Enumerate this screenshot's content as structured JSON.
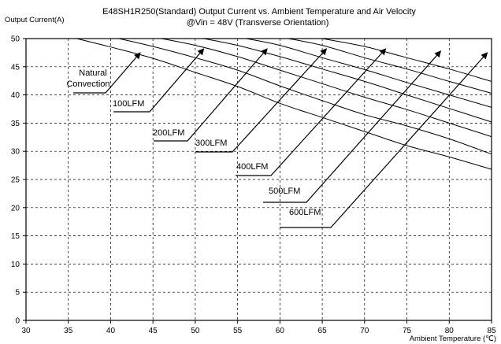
{
  "chart_data": {
    "type": "line",
    "title": "E48SH1R250(Standard)  Output Current vs. Ambient Temperature and Air Velocity",
    "subtitle": "@Vin = 48V (Transverse Orientation)",
    "ylabel": "Output Current(A)",
    "xlabel": "Ambient Temperature (℃)",
    "xlim": [
      30,
      85
    ],
    "ylim": [
      0,
      50
    ],
    "x_ticks": [
      "30",
      "35",
      "40",
      "45",
      "50",
      "55",
      "60",
      "65",
      "70",
      "75",
      "80",
      "85"
    ],
    "y_ticks": [
      "0",
      "5",
      "10",
      "15",
      "20",
      "25",
      "30",
      "35",
      "40",
      "45",
      "50"
    ],
    "grid": true,
    "series": [
      {
        "name": "Natural Convection",
        "label_lines": [
          "Natural",
          "Convection"
        ],
        "x": [
          30,
          36,
          40,
          45,
          50,
          55,
          60,
          65,
          70,
          75,
          80,
          85
        ],
        "y": [
          50,
          50,
          48.5,
          46.5,
          44.0,
          41.5,
          38.5,
          36.0,
          33.5,
          31.0,
          29.0,
          26.8
        ],
        "arrow_to": [
          43.5,
          47.5
        ]
      },
      {
        "name": "100LFM",
        "label_lines": [
          "100LFM"
        ],
        "x": [
          30,
          41,
          45,
          50,
          55,
          60,
          65,
          70,
          75,
          80,
          85
        ],
        "y": [
          50,
          50,
          48.6,
          46.6,
          44.4,
          41.6,
          39.0,
          36.5,
          34.5,
          32.2,
          29.5
        ],
        "arrow_to": [
          51.0,
          48.2
        ]
      },
      {
        "name": "200LFM",
        "label_lines": [
          "200LFM"
        ],
        "x": [
          30,
          46,
          50,
          55,
          60,
          65,
          70,
          75,
          80,
          85
        ],
        "y": [
          50,
          50,
          48.8,
          46.8,
          44.4,
          42.0,
          39.6,
          37.4,
          35.0,
          32.6
        ],
        "arrow_to": [
          58.5,
          48.2
        ]
      },
      {
        "name": "300LFM",
        "label_lines": [
          "300LFM"
        ],
        "x": [
          30,
          51,
          55,
          60,
          65,
          70,
          75,
          80,
          85
        ],
        "y": [
          50,
          50,
          48.8,
          46.8,
          44.6,
          42.4,
          40.0,
          37.6,
          35.2
        ],
        "arrow_to": [
          65.5,
          48.2
        ]
      },
      {
        "name": "400LFM",
        "label_lines": [
          "400LFM"
        ],
        "x": [
          30,
          56,
          60,
          65,
          70,
          75,
          80,
          85
        ],
        "y": [
          50,
          50,
          48.8,
          46.6,
          44.5,
          42.2,
          40.0,
          37.8
        ],
        "arrow_to": [
          72.5,
          48.2
        ]
      },
      {
        "name": "500LFM",
        "label_lines": [
          "500LFM"
        ],
        "x": [
          30,
          61,
          65,
          70,
          75,
          80,
          85
        ],
        "y": [
          50,
          50,
          48.8,
          46.6,
          44.6,
          42.4,
          40.3
        ],
        "arrow_to": [
          79.0,
          47.8
        ]
      },
      {
        "name": "600LFM",
        "label_lines": [
          "600LFM"
        ],
        "x": [
          30,
          65,
          70,
          75,
          80,
          85
        ],
        "y": [
          50,
          50,
          48.6,
          46.6,
          44.6,
          42.4
        ],
        "arrow_to": [
          84.5,
          47.5
        ]
      }
    ]
  }
}
